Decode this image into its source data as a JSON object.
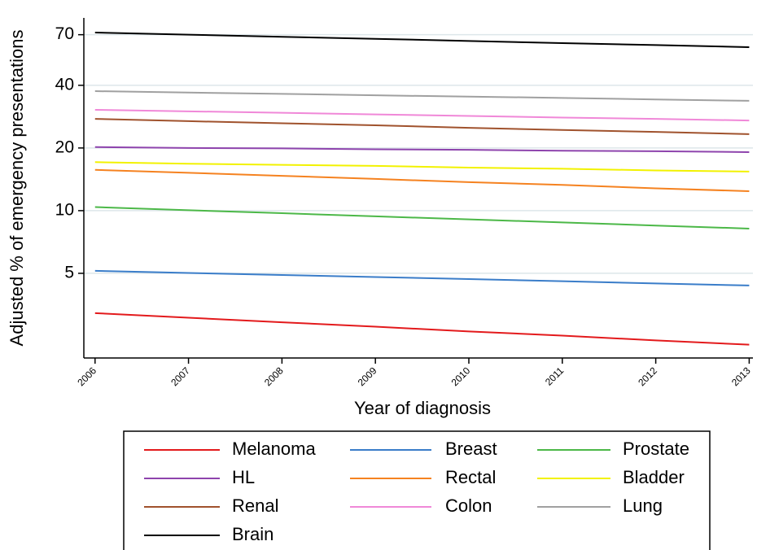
{
  "chart_data": {
    "type": "line",
    "x_label": "Year of diagnosis",
    "y_label": "Adjusted % of emergency presentations",
    "x": [
      2006,
      2007,
      2008,
      2009,
      2010,
      2011,
      2012,
      2013
    ],
    "xlim": [
      2005.88,
      2013.04
    ],
    "xticks": [
      2006,
      2007,
      2008,
      2009,
      2010,
      2011,
      2012,
      2013
    ],
    "ylim": [
      1.96,
      84.3
    ],
    "yticks": [
      5,
      10,
      20,
      40,
      70
    ],
    "log_scale_y": true,
    "grid": true,
    "series": [
      {
        "name": "Melanoma",
        "color": "#e31a1c",
        "values": [
          3.22,
          3.06,
          2.91,
          2.77,
          2.63,
          2.51,
          2.38,
          2.27
        ]
      },
      {
        "name": "Breast",
        "color": "#3a7dc9",
        "values": [
          5.14,
          5.02,
          4.91,
          4.8,
          4.69,
          4.58,
          4.47,
          4.37
        ]
      },
      {
        "name": "Prostate",
        "color": "#4cb848",
        "values": [
          10.4,
          10.05,
          9.72,
          9.39,
          9.08,
          8.78,
          8.48,
          8.2
        ]
      },
      {
        "name": "HL",
        "color": "#8e44ad",
        "values": [
          20.2,
          20.0,
          19.9,
          19.7,
          19.6,
          19.4,
          19.3,
          19.1
        ]
      },
      {
        "name": "Rectal",
        "color": "#f58220",
        "values": [
          15.7,
          15.2,
          14.7,
          14.2,
          13.7,
          13.3,
          12.8,
          12.4
        ]
      },
      {
        "name": "Bladder",
        "color": "#f2f200",
        "values": [
          17.1,
          16.8,
          16.6,
          16.4,
          16.1,
          15.9,
          15.6,
          15.4
        ]
      },
      {
        "name": "Renal",
        "color": "#a0522d",
        "values": [
          27.6,
          26.9,
          26.3,
          25.7,
          25.0,
          24.4,
          23.9,
          23.3
        ]
      },
      {
        "name": "Colon",
        "color": "#f088d8",
        "values": [
          30.5,
          30.0,
          29.5,
          29.0,
          28.5,
          28.0,
          27.6,
          27.1
        ]
      },
      {
        "name": "Lung",
        "color": "#a0a0a0",
        "values": [
          37.5,
          36.9,
          36.4,
          35.8,
          35.3,
          34.8,
          34.2,
          33.7
        ]
      },
      {
        "name": "Brain",
        "color": "#000000",
        "values": [
          71.7,
          70.0,
          68.4,
          66.9,
          65.3,
          63.8,
          62.4,
          61.0
        ]
      }
    ]
  }
}
